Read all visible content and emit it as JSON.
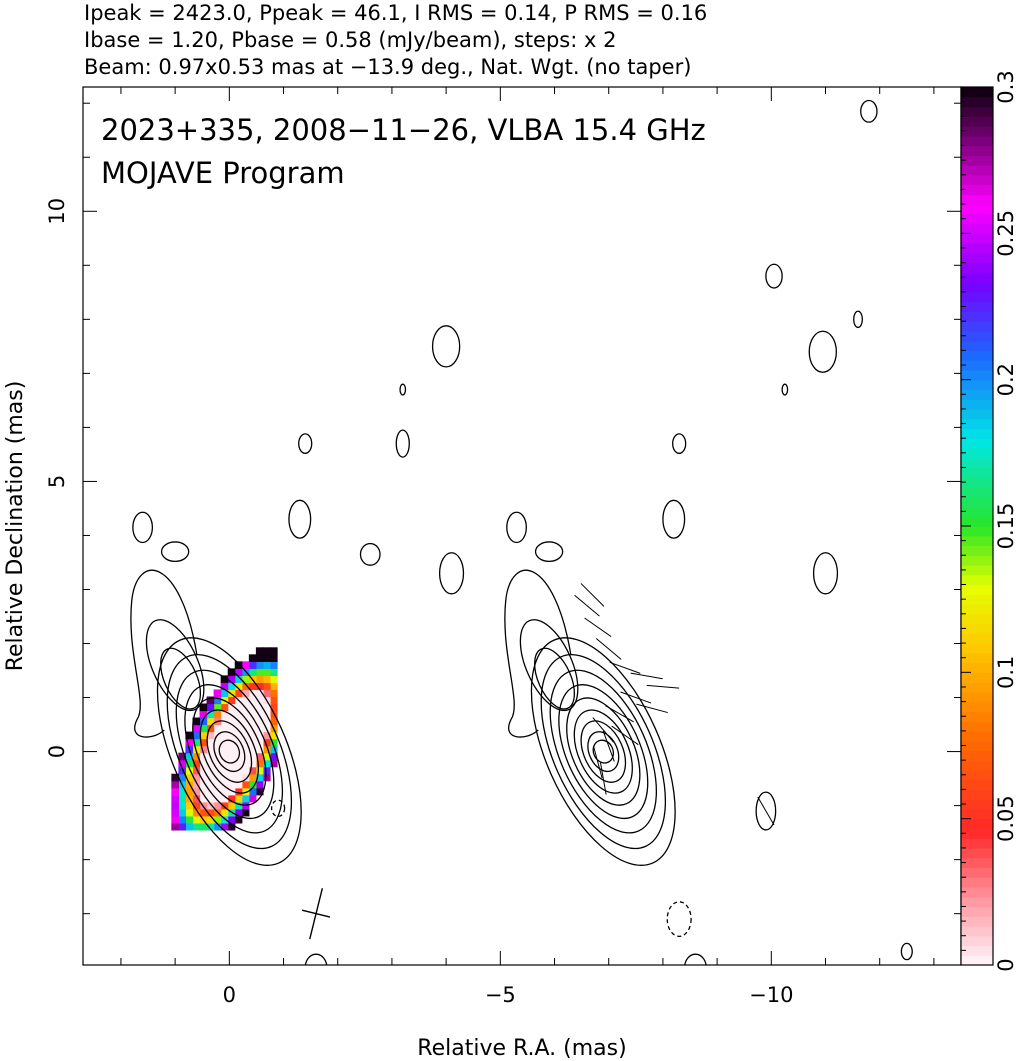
{
  "header": {
    "line1": "Ipeak = 2423.0, Ppeak = 46.1, I RMS = 0.14, P RMS = 0.16",
    "line2": "Ibase = 1.20, Pbase = 0.58 (mJy/beam), steps: x 2",
    "line3": "Beam: 0.97x0.53 mas at −13.9 deg., Nat. Wgt. (no taper)"
  },
  "chart_data": {
    "type": "heatmap",
    "title": "2023+335, 2008−11−26, VLBA 15.4 GHz",
    "subtitle": "MOJAVE Program",
    "xlabel": "Relative R.A. (mas)",
    "ylabel": "Relative Declination (mas)",
    "xlim": [
      2.7,
      -13.5
    ],
    "ylim": [
      -3.95,
      12.3
    ],
    "x_ticks": [
      0,
      -5,
      -10
    ],
    "x_tick_labels": [
      "0",
      "−5",
      "−10"
    ],
    "y_ticks": [
      0,
      5,
      10
    ],
    "y_tick_labels": [
      "0",
      "5",
      "10"
    ],
    "colorbar": {
      "range": [
        0,
        0.3
      ],
      "ticks": [
        0,
        0.05,
        0.1,
        0.15,
        0.2,
        0.25,
        0.3
      ],
      "tick_labels": [
        "0",
        "0.05",
        "0.1",
        "0.15",
        "0.2",
        "0.25",
        "0.3"
      ]
    },
    "stats": {
      "i_peak_mjy_beam": 2423.0,
      "p_peak_mjy_beam": 46.1,
      "i_rms": 0.14,
      "p_rms": 0.16,
      "i_base": 1.2,
      "p_base": 0.58,
      "contour_step_factor": 2
    },
    "beam": {
      "major_mas": 0.97,
      "minor_mas": 0.53,
      "pa_deg": -13.9
    },
    "panels": [
      {
        "name": "fractional polarization",
        "center": [
          0,
          0
        ]
      },
      {
        "name": "EVPA vectors",
        "center": [
          -6.9,
          0
        ]
      }
    ],
    "core_contours": [
      {
        "a": 0.18,
        "b": 0.18
      },
      {
        "a": 0.32,
        "b": 0.26
      },
      {
        "a": 0.5,
        "b": 0.36
      },
      {
        "a": 0.68,
        "b": 0.46
      },
      {
        "a": 0.88,
        "b": 0.57
      },
      {
        "a": 1.1,
        "b": 0.68
      },
      {
        "a": 1.34,
        "b": 0.8
      },
      {
        "a": 1.6,
        "b": 0.92
      },
      {
        "a": 1.88,
        "b": 1.05
      }
    ],
    "noise_contours": [
      [
        1.6,
        4.15,
        0.18,
        0.28
      ],
      [
        1.0,
        3.7,
        0.25,
        0.18
      ],
      [
        -1.3,
        4.3,
        0.2,
        0.35
      ],
      [
        -1.4,
        5.7,
        0.12,
        0.18
      ],
      [
        -2.6,
        3.65,
        0.18,
        0.2
      ],
      [
        -3.2,
        6.7,
        0.05,
        0.1
      ],
      [
        -3.2,
        5.7,
        0.12,
        0.25
      ],
      [
        -4.0,
        7.5,
        0.25,
        0.38
      ],
      [
        -4.1,
        3.3,
        0.22,
        0.38
      ],
      [
        -5.3,
        4.15,
        0.18,
        0.28
      ],
      [
        -5.9,
        3.7,
        0.25,
        0.18
      ],
      [
        -8.2,
        4.3,
        0.2,
        0.35
      ],
      [
        -8.3,
        5.7,
        0.12,
        0.18
      ],
      [
        -10.05,
        8.8,
        0.15,
        0.22
      ],
      [
        -10.25,
        6.7,
        0.05,
        0.1
      ],
      [
        -10.95,
        7.4,
        0.25,
        0.38
      ],
      [
        -11.6,
        8.0,
        0.08,
        0.15
      ],
      [
        -11.0,
        3.3,
        0.22,
        0.38
      ],
      [
        -11.8,
        11.85,
        0.15,
        0.2
      ],
      [
        -9.9,
        -1.1,
        0.18,
        0.35
      ],
      [
        -12.5,
        -3.7,
        0.1,
        0.15
      ],
      [
        -1.6,
        -4.0,
        0.2,
        0.25
      ],
      [
        -8.6,
        -4.0,
        0.2,
        0.25
      ]
    ],
    "negative_contours": [
      [
        -0.9,
        -1.05,
        0.12,
        0.15
      ],
      [
        -8.3,
        -3.1,
        0.22,
        0.32
      ]
    ]
  }
}
